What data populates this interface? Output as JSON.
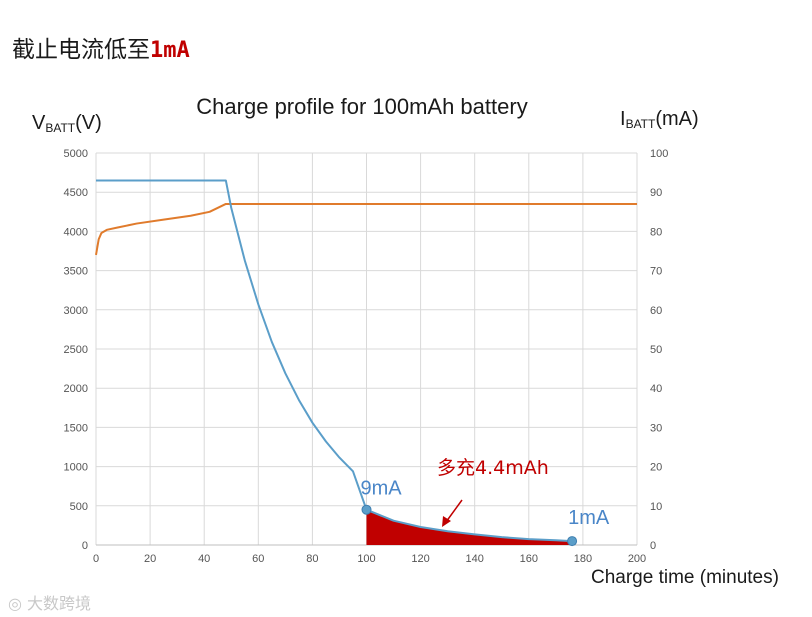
{
  "heading": {
    "prefix": "截止电流低至",
    "highlight": "1mA"
  },
  "watermark": "大数跨境",
  "chart_data": {
    "type": "line",
    "title": "Charge profile for 100mAh battery",
    "xlabel": "Charge time (minutes)",
    "ylabel_left": {
      "main": "V",
      "sub": "BATT",
      "unit": "(V)"
    },
    "ylabel_right": {
      "main": "I",
      "sub": "BATT",
      "unit": "(mA)"
    },
    "xlim": [
      0,
      200
    ],
    "ylim_left": [
      0,
      5000
    ],
    "ylim_right": [
      0,
      100
    ],
    "x_ticks": [
      "0",
      "20",
      "40",
      "60",
      "80",
      "100",
      "120",
      "140",
      "160",
      "180",
      "200"
    ],
    "y_ticks_left": [
      "0",
      "500",
      "1000",
      "1500",
      "2000",
      "2500",
      "3000",
      "3500",
      "4000",
      "4500",
      "5000"
    ],
    "y_ticks_right": [
      "0",
      "10",
      "20",
      "30",
      "40",
      "50",
      "60",
      "70",
      "80",
      "90",
      "100"
    ],
    "grid": true,
    "series": [
      {
        "axis": "left",
        "color": "#e07b2c",
        "x": [
          0,
          1,
          2,
          4,
          8,
          15,
          25,
          35,
          42,
          48,
          60,
          80,
          100,
          120,
          140,
          160,
          180,
          200
        ],
        "y": [
          3700,
          3900,
          3980,
          4020,
          4050,
          4100,
          4150,
          4200,
          4250,
          4350,
          4350,
          4350,
          4350,
          4350,
          4350,
          4350,
          4350,
          4350
        ]
      },
      {
        "axis": "right",
        "color": "#5b9ec9",
        "x": [
          0,
          20,
          40,
          48,
          50,
          55,
          60,
          65,
          70,
          75,
          80,
          85,
          90,
          95,
          100,
          110,
          120,
          130,
          140,
          150,
          160,
          170,
          176
        ],
        "y": [
          93,
          93,
          93,
          93,
          86,
          72.6,
          61.4,
          51.8,
          43.8,
          37.0,
          31.2,
          26.4,
          22.3,
          18.8,
          9,
          6.2,
          4.6,
          3.5,
          2.7,
          2.0,
          1.5,
          1.2,
          1
        ]
      }
    ],
    "markers": [
      {
        "x": 100,
        "y": 9,
        "label": "9mA"
      },
      {
        "x": 176,
        "y": 1,
        "label": "1mA"
      }
    ],
    "shaded_region": {
      "x_from": 100,
      "x_to": 176,
      "color": "#c00000",
      "label": "多充4.4mAh"
    }
  }
}
